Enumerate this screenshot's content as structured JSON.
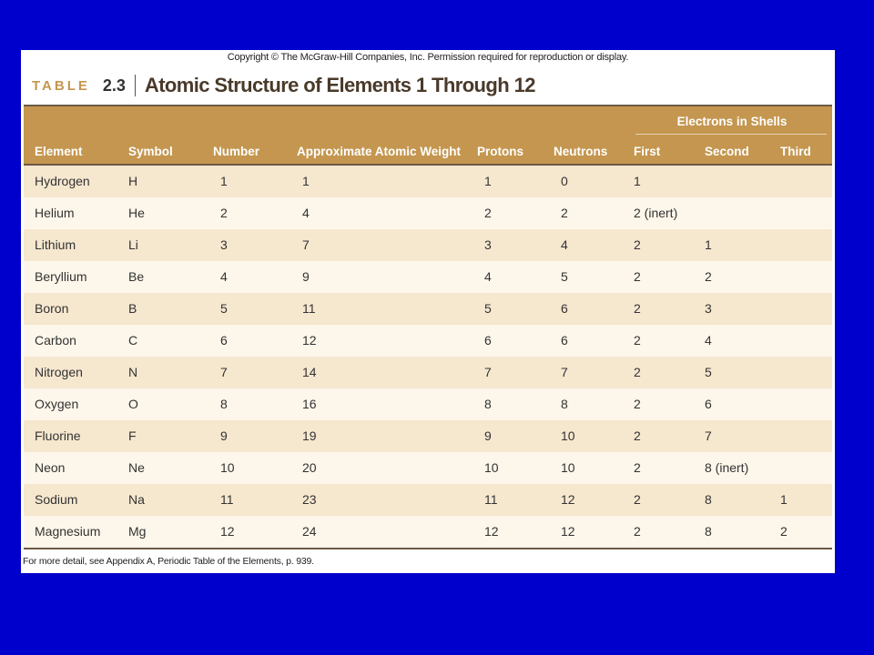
{
  "copyright": "Copyright © The McGraw-Hill Companies, Inc. Permission required for reproduction or display.",
  "table_label": "TABLE",
  "table_number": "2.3",
  "table_title": "Atomic Structure of Elements 1 Through 12",
  "group_header": "Electrons in Shells",
  "columns": [
    "Element",
    "Symbol",
    "Number",
    "Approximate Atomic Weight",
    "Protons",
    "Neutrons",
    "First",
    "Second",
    "Third"
  ],
  "rows": [
    [
      "Hydrogen",
      "H",
      "1",
      "1",
      "1",
      "0",
      "1",
      "",
      ""
    ],
    [
      "Helium",
      "He",
      "2",
      "4",
      "2",
      "2",
      "2 (inert)",
      "",
      ""
    ],
    [
      "Lithium",
      "Li",
      "3",
      "7",
      "3",
      "4",
      "2",
      "1",
      ""
    ],
    [
      "Beryllium",
      "Be",
      "4",
      "9",
      "4",
      "5",
      "2",
      "2",
      ""
    ],
    [
      "Boron",
      "B",
      "5",
      "11",
      "5",
      "6",
      "2",
      "3",
      ""
    ],
    [
      "Carbon",
      "C",
      "6",
      "12",
      "6",
      "6",
      "2",
      "4",
      ""
    ],
    [
      "Nitrogen",
      "N",
      "7",
      "14",
      "7",
      "7",
      "2",
      "5",
      ""
    ],
    [
      "Oxygen",
      "O",
      "8",
      "16",
      "8",
      "8",
      "2",
      "6",
      ""
    ],
    [
      "Fluorine",
      "F",
      "9",
      "19",
      "9",
      "10",
      "2",
      "7",
      ""
    ],
    [
      "Neon",
      "Ne",
      "10",
      "20",
      "10",
      "10",
      "2",
      "8 (inert)",
      ""
    ],
    [
      "Sodium",
      "Na",
      "11",
      "23",
      "11",
      "12",
      "2",
      "8",
      "1"
    ],
    [
      "Magnesium",
      "Mg",
      "12",
      "24",
      "12",
      "12",
      "2",
      "8",
      "2"
    ]
  ],
  "footnote": "For more detail, see Appendix A, Periodic Table of the Elements, p. 939.",
  "colors": {
    "background": "#0000cc",
    "header": "#c4964f",
    "row_odd": "#f6e7cf",
    "row_even": "#fdf6ea"
  }
}
